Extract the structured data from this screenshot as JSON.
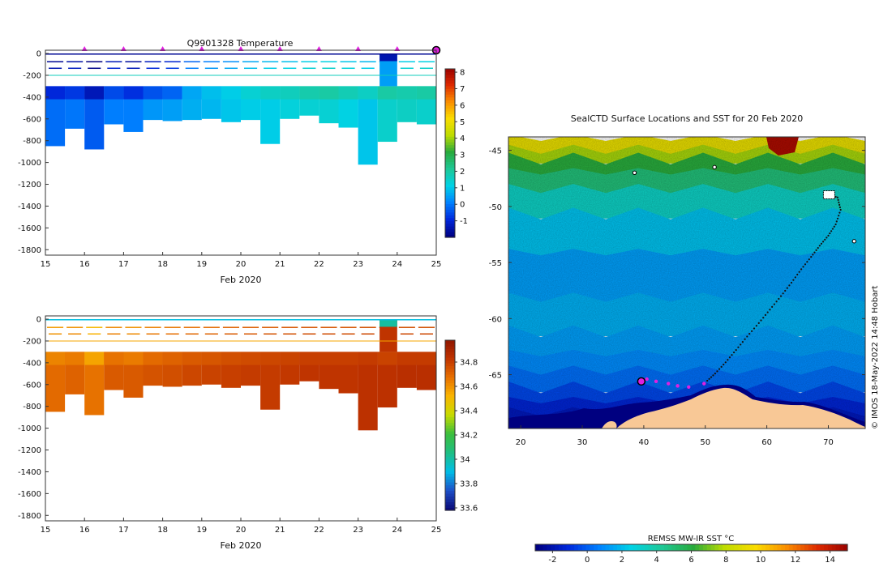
{
  "chart_data": [
    {
      "type": "heatmap",
      "title": "Q9901328  Temperature",
      "xlabel": "Feb 2020",
      "ylabel": "",
      "x_ticks": [
        15,
        16,
        17,
        18,
        19,
        20,
        21,
        22,
        23,
        24,
        25
      ],
      "y_ticks": [
        0,
        -200,
        -400,
        -600,
        -800,
        -1000,
        -1200,
        -1400,
        -1600,
        -1800
      ],
      "xlim": [
        15,
        25
      ],
      "ylim": [
        -1850,
        30
      ],
      "colorbar": {
        "min": -2,
        "max": 8.2,
        "ticks": [
          8,
          7,
          6,
          5,
          4,
          3,
          2,
          1,
          0,
          -1
        ],
        "tick_labels": [
          "8",
          "7",
          "6",
          "5",
          "4",
          "3",
          "2",
          "1",
          "0",
          "-1"
        ]
      },
      "profile_markers_x": [
        16,
        17,
        18,
        19,
        20,
        21,
        22,
        23,
        24
      ],
      "last_profile_x": 25,
      "profiles": [
        {
          "t": 15.0,
          "w": 0.5,
          "bottom": -850,
          "deep": -0.2,
          "mid": -1.0
        },
        {
          "t": 15.5,
          "w": 0.5,
          "bottom": -690,
          "deep": -0.1,
          "mid": -0.8
        },
        {
          "t": 16.0,
          "w": 0.5,
          "bottom": -880,
          "deep": -0.4,
          "mid": -1.4
        },
        {
          "t": 16.5,
          "w": 0.5,
          "bottom": -650,
          "deep": 0.0,
          "mid": -0.6
        },
        {
          "t": 17.0,
          "w": 0.5,
          "bottom": -720,
          "deep": 0.0,
          "mid": -0.9
        },
        {
          "t": 17.5,
          "w": 0.5,
          "bottom": -610,
          "deep": 0.3,
          "mid": -0.5
        },
        {
          "t": 18.0,
          "w": 0.5,
          "bottom": -620,
          "deep": 0.4,
          "mid": -0.3
        },
        {
          "t": 18.5,
          "w": 0.5,
          "bottom": -610,
          "deep": 0.6,
          "mid": 0.5
        },
        {
          "t": 19.0,
          "w": 0.5,
          "bottom": -600,
          "deep": 0.7,
          "mid": 0.8
        },
        {
          "t": 19.5,
          "w": 0.5,
          "bottom": -630,
          "deep": 0.9,
          "mid": 1.0
        },
        {
          "t": 20.0,
          "w": 0.5,
          "bottom": -610,
          "deep": 1.0,
          "mid": 1.3
        },
        {
          "t": 20.5,
          "w": 0.5,
          "bottom": -830,
          "deep": 1.0,
          "mid": 1.5
        },
        {
          "t": 21.0,
          "w": 0.5,
          "bottom": -600,
          "deep": 1.2,
          "mid": 1.6
        },
        {
          "t": 21.5,
          "w": 0.5,
          "bottom": -570,
          "deep": 1.3,
          "mid": 1.8
        },
        {
          "t": 22.0,
          "w": 0.5,
          "bottom": -640,
          "deep": 1.3,
          "mid": 1.9
        },
        {
          "t": 22.5,
          "w": 0.5,
          "bottom": -680,
          "deep": 1.1,
          "mid": 1.7
        },
        {
          "t": 23.0,
          "w": 0.5,
          "bottom": -1020,
          "deep": 0.9,
          "mid": 1.5
        },
        {
          "t": 23.5,
          "w": 0.5,
          "bottom": -810,
          "deep": 1.4,
          "mid": 1.9
        },
        {
          "t": 24.0,
          "w": 0.5,
          "bottom": -630,
          "deep": 1.5,
          "mid": 1.8
        },
        {
          "t": 24.5,
          "w": 0.5,
          "bottom": -650,
          "deep": 1.4,
          "mid": 1.9
        }
      ]
    },
    {
      "type": "heatmap",
      "title": "",
      "xlabel": "Feb 2020",
      "ylabel": "",
      "x_ticks": [
        15,
        16,
        17,
        18,
        19,
        20,
        21,
        22,
        23,
        24,
        25
      ],
      "y_ticks": [
        0,
        -200,
        -400,
        -600,
        -800,
        -1000,
        -1200,
        -1400,
        -1600,
        -1800
      ],
      "xlim": [
        15,
        25
      ],
      "ylim": [
        -1850,
        30
      ],
      "colorbar": {
        "min": 33.58,
        "max": 34.98,
        "ticks": [
          34.8,
          34.6,
          34.4,
          34.2,
          34,
          33.8,
          33.6
        ],
        "tick_labels": [
          "34.8",
          "34.6",
          "34.4",
          "34.2",
          "34",
          "33.8",
          "33.6"
        ]
      },
      "profiles": [
        {
          "t": 15.0,
          "w": 0.5,
          "bottom": -850,
          "deep": 34.68,
          "mid": 34.62
        },
        {
          "t": 15.5,
          "w": 0.5,
          "bottom": -690,
          "deep": 34.7,
          "mid": 34.64
        },
        {
          "t": 16.0,
          "w": 0.5,
          "bottom": -880,
          "deep": 34.66,
          "mid": 34.55
        },
        {
          "t": 16.5,
          "w": 0.5,
          "bottom": -650,
          "deep": 34.72,
          "mid": 34.66
        },
        {
          "t": 17.0,
          "w": 0.5,
          "bottom": -720,
          "deep": 34.72,
          "mid": 34.64
        },
        {
          "t": 17.5,
          "w": 0.5,
          "bottom": -610,
          "deep": 34.74,
          "mid": 34.68
        },
        {
          "t": 18.0,
          "w": 0.5,
          "bottom": -620,
          "deep": 34.75,
          "mid": 34.7
        },
        {
          "t": 18.5,
          "w": 0.5,
          "bottom": -610,
          "deep": 34.77,
          "mid": 34.72
        },
        {
          "t": 19.0,
          "w": 0.5,
          "bottom": -600,
          "deep": 34.78,
          "mid": 34.73
        },
        {
          "t": 19.5,
          "w": 0.5,
          "bottom": -630,
          "deep": 34.79,
          "mid": 34.75
        },
        {
          "t": 20.0,
          "w": 0.5,
          "bottom": -610,
          "deep": 34.8,
          "mid": 34.76
        },
        {
          "t": 20.5,
          "w": 0.5,
          "bottom": -830,
          "deep": 34.8,
          "mid": 34.77
        },
        {
          "t": 21.0,
          "w": 0.5,
          "bottom": -600,
          "deep": 34.81,
          "mid": 34.78
        },
        {
          "t": 21.5,
          "w": 0.5,
          "bottom": -570,
          "deep": 34.82,
          "mid": 34.79
        },
        {
          "t": 22.0,
          "w": 0.5,
          "bottom": -640,
          "deep": 34.82,
          "mid": 34.79
        },
        {
          "t": 22.5,
          "w": 0.5,
          "bottom": -680,
          "deep": 34.82,
          "mid": 34.79
        },
        {
          "t": 23.0,
          "w": 0.5,
          "bottom": -1020,
          "deep": 34.83,
          "mid": 34.8
        },
        {
          "t": 23.5,
          "w": 0.5,
          "bottom": -810,
          "deep": 34.83,
          "mid": 34.78
        },
        {
          "t": 24.0,
          "w": 0.5,
          "bottom": -630,
          "deep": 34.84,
          "mid": 34.8
        },
        {
          "t": 24.5,
          "w": 0.5,
          "bottom": -650,
          "deep": 34.84,
          "mid": 34.8
        }
      ]
    },
    {
      "type": "heatmap",
      "title": "SealCTD Surface Locations and SST for 20 Feb 2020",
      "xlabel": "",
      "ylabel": "",
      "x_ticks": [
        20,
        30,
        40,
        50,
        60,
        70
      ],
      "y_ticks": [
        -45,
        -50,
        -55,
        -60,
        -65
      ],
      "xlim": [
        18,
        76
      ],
      "ylim": [
        -69.8,
        -43.8
      ],
      "colorbar_label": "REMSS MW-IR SST °C",
      "colorbar": {
        "min": -3,
        "max": 15,
        "ticks": [
          -2,
          0,
          2,
          4,
          6,
          8,
          10,
          12,
          14
        ],
        "tick_labels": [
          "-2",
          "0",
          "2",
          "4",
          "6",
          "8",
          "10",
          "12",
          "14"
        ]
      },
      "track_start": [
        39.6,
        -65.6
      ],
      "track": [
        [
          70.0,
          -48.9
        ],
        [
          71.5,
          -49.2
        ],
        [
          72.0,
          -50.3
        ],
        [
          71.2,
          -51.6
        ],
        [
          70.0,
          -52.6
        ],
        [
          68.6,
          -53.5
        ],
        [
          67.2,
          -54.5
        ],
        [
          65.6,
          -55.6
        ],
        [
          64.0,
          -56.8
        ],
        [
          62.3,
          -58.0
        ],
        [
          60.5,
          -59.2
        ],
        [
          58.7,
          -60.4
        ],
        [
          56.8,
          -61.6
        ],
        [
          55.0,
          -62.8
        ],
        [
          53.3,
          -63.9
        ],
        [
          51.6,
          -64.9
        ],
        [
          50.0,
          -65.7
        ]
      ],
      "recent_track": [
        [
          40.5,
          -65.4
        ],
        [
          42.0,
          -65.6
        ],
        [
          44.0,
          -65.8
        ],
        [
          45.5,
          -66.0
        ],
        [
          47.3,
          -66.1
        ],
        [
          49.8,
          -65.8
        ]
      ],
      "stations": [
        [
          38.5,
          -47.0
        ],
        [
          51.5,
          -46.5
        ],
        [
          74.2,
          -53.1
        ]
      ],
      "credit": "© IMOS 18-May-2022 14:48 Hobart"
    }
  ]
}
